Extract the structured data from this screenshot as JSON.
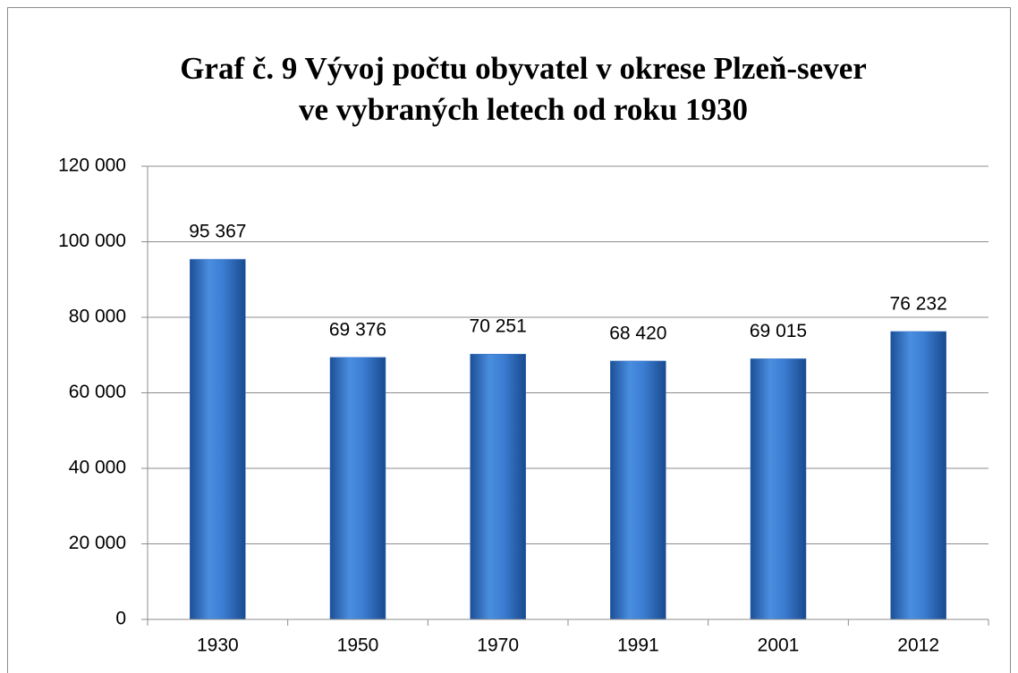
{
  "chart_data": {
    "type": "bar",
    "title": [
      "Graf č. 9 Vývoj počtu obyvatel v okrese Plzeň-sever",
      "ve vybraných letech od roku 1930"
    ],
    "categories": [
      "1930",
      "1950",
      "1970",
      "1991",
      "2001",
      "2012"
    ],
    "values": [
      95367,
      69376,
      70251,
      68420,
      69015,
      76232
    ],
    "value_labels": [
      "95 367",
      "69 376",
      "70 251",
      "68 420",
      "69 015",
      "76 232"
    ],
    "color": "#2f6fc4",
    "ylim": [
      0,
      120000
    ],
    "yticks": [
      0,
      {
        "value": 20000,
        "label": "20 000"
      },
      {
        "value": 40000,
        "label": "40 000"
      },
      {
        "value": 60000,
        "label": "60 000"
      },
      {
        "value": 80000,
        "label": "80 000"
      },
      {
        "value": 100000,
        "label": "100 000"
      },
      {
        "value": 120000,
        "label": "120 000"
      }
    ],
    "grid": true
  }
}
